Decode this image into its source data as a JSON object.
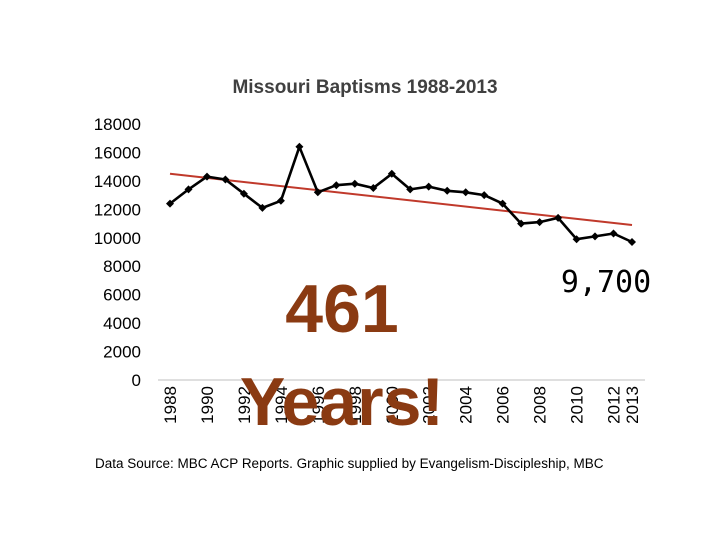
{
  "chart_data": {
    "type": "line",
    "title": "Missouri Baptisms 1988-2013",
    "xlabel": "",
    "ylabel": "",
    "x": [
      1988,
      1989,
      1990,
      1991,
      1992,
      1993,
      1994,
      1995,
      1996,
      1997,
      1998,
      1999,
      2000,
      2001,
      2002,
      2003,
      2004,
      2005,
      2006,
      2007,
      2008,
      2009,
      2010,
      2011,
      2012,
      2013
    ],
    "x_tick_labels": [
      "1988",
      "1990",
      "1992",
      "1994",
      "1996",
      "1998",
      "2000",
      "2002",
      "2004",
      "2006",
      "2008",
      "2010",
      "2012",
      "2013"
    ],
    "y_tick_labels": [
      "18000",
      "16000",
      "14000",
      "12000",
      "10000",
      "8000",
      "6000",
      "4000",
      "2000",
      "0"
    ],
    "ylim": [
      0,
      18000
    ],
    "grid": false,
    "series": [
      {
        "values": [
          12400,
          13400,
          14300,
          14100,
          13100,
          12100,
          12600,
          16400,
          13200,
          13700,
          13800,
          13500,
          14500,
          13400,
          13600,
          13300,
          13200,
          13000,
          12400,
          11000,
          11100,
          11400,
          9900,
          10100,
          10300,
          9700
        ],
        "color": "#000000",
        "marker": "diamond"
      },
      {
        "values": [
          14500,
          10900
        ],
        "x": [
          1988,
          2013
        ],
        "type": "trendline",
        "color": "#c0392b"
      }
    ]
  },
  "source_note": "Data Source: MBC ACP Reports. Graphic supplied by Evangelism-Discipleship, MBC",
  "overlay": {
    "line1": "461",
    "line2": "Years!",
    "callout": "9,700",
    "color": "#8a3a12"
  }
}
